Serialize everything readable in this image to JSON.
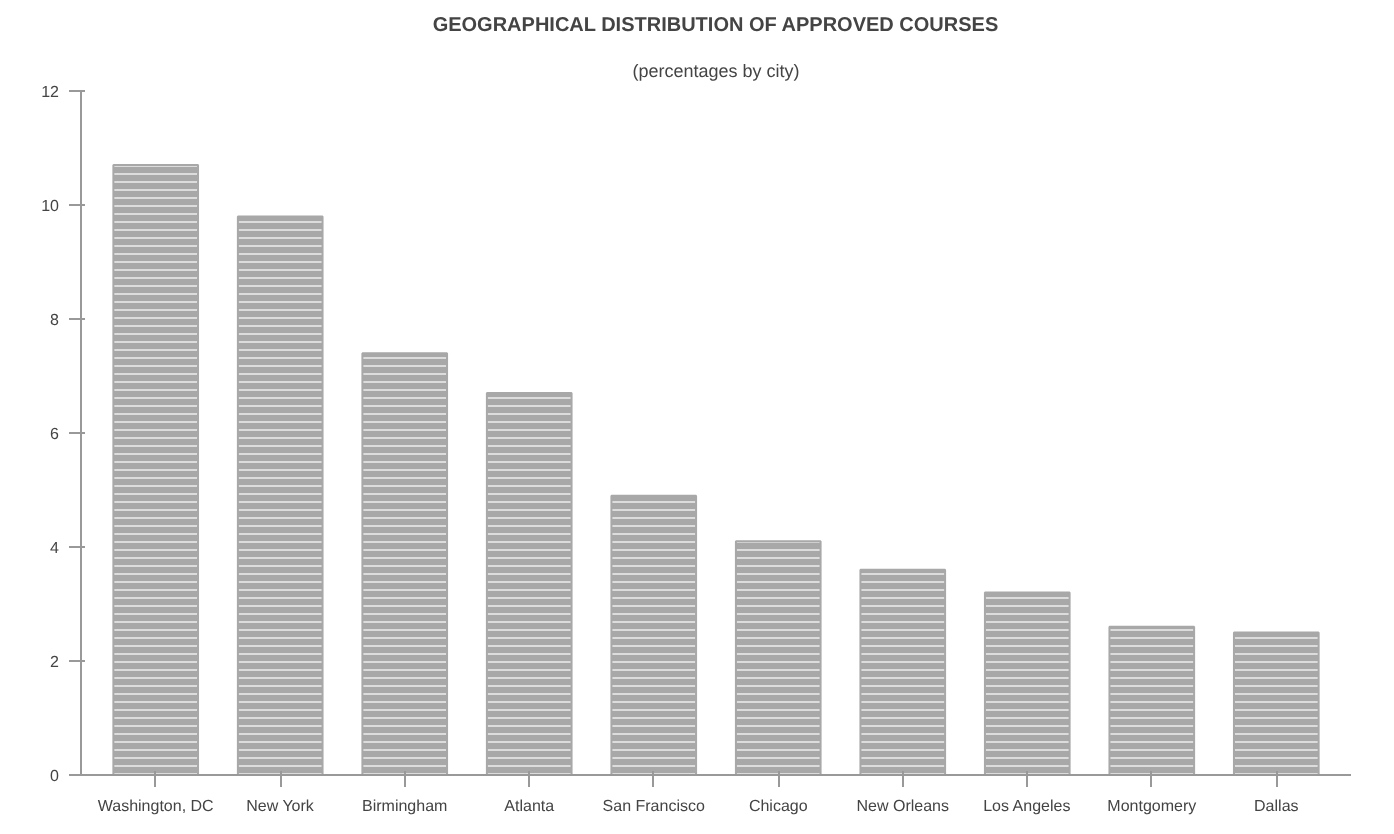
{
  "chart_data": {
    "type": "bar",
    "title": "GEOGRAPHICAL DISTRIBUTION OF APPROVED COURSES",
    "subtitle": "(percentages by city)",
    "categories": [
      "Washington, DC",
      "New York",
      "Birmingham",
      "Atlanta",
      "San Francisco",
      "Chicago",
      "New Orleans",
      "Los Angeles",
      "Montgomery",
      "Dallas"
    ],
    "values": [
      10.7,
      9.8,
      7.4,
      6.7,
      4.9,
      4.1,
      3.6,
      3.2,
      2.6,
      2.5
    ],
    "color": "#a8a8a8",
    "ylim": [
      0,
      12
    ],
    "yticks": [
      0,
      2,
      4,
      6,
      8,
      10,
      12
    ],
    "grid": false
  }
}
